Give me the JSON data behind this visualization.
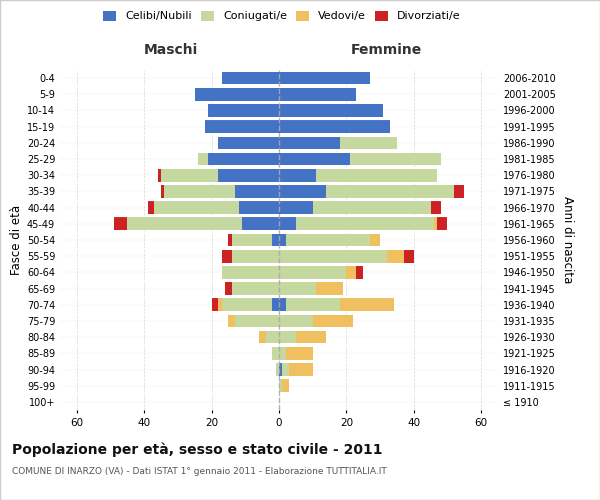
{
  "age_groups": [
    "100+",
    "95-99",
    "90-94",
    "85-89",
    "80-84",
    "75-79",
    "70-74",
    "65-69",
    "60-64",
    "55-59",
    "50-54",
    "45-49",
    "40-44",
    "35-39",
    "30-34",
    "25-29",
    "20-24",
    "15-19",
    "10-14",
    "5-9",
    "0-4"
  ],
  "birth_years": [
    "≤ 1910",
    "1911-1915",
    "1916-1920",
    "1921-1925",
    "1926-1930",
    "1931-1935",
    "1936-1940",
    "1941-1945",
    "1946-1950",
    "1951-1955",
    "1956-1960",
    "1961-1965",
    "1966-1970",
    "1971-1975",
    "1976-1980",
    "1981-1985",
    "1986-1990",
    "1991-1995",
    "1996-2000",
    "2001-2005",
    "2006-2010"
  ],
  "males": {
    "celibi": [
      0,
      0,
      0,
      0,
      0,
      0,
      2,
      0,
      0,
      0,
      2,
      11,
      12,
      13,
      18,
      21,
      18,
      22,
      21,
      25,
      17
    ],
    "coniugati": [
      0,
      0,
      1,
      2,
      4,
      13,
      15,
      14,
      17,
      14,
      12,
      34,
      25,
      21,
      17,
      3,
      0,
      0,
      0,
      0,
      0
    ],
    "vedovi": [
      0,
      0,
      0,
      0,
      2,
      2,
      1,
      0,
      0,
      0,
      0,
      0,
      0,
      0,
      0,
      0,
      0,
      0,
      0,
      0,
      0
    ],
    "divorziati": [
      0,
      0,
      0,
      0,
      0,
      0,
      2,
      2,
      0,
      3,
      1,
      4,
      2,
      1,
      1,
      0,
      0,
      0,
      0,
      0,
      0
    ]
  },
  "females": {
    "nubili": [
      0,
      0,
      1,
      0,
      0,
      0,
      2,
      0,
      0,
      0,
      2,
      5,
      10,
      14,
      11,
      21,
      18,
      33,
      31,
      23,
      27
    ],
    "coniugate": [
      0,
      1,
      2,
      2,
      5,
      10,
      16,
      11,
      20,
      32,
      25,
      41,
      35,
      38,
      36,
      27,
      17,
      0,
      0,
      0,
      0
    ],
    "vedove": [
      0,
      2,
      7,
      8,
      9,
      12,
      16,
      8,
      3,
      5,
      3,
      1,
      0,
      0,
      0,
      0,
      0,
      0,
      0,
      0,
      0
    ],
    "divorziate": [
      0,
      0,
      0,
      0,
      0,
      0,
      0,
      0,
      2,
      3,
      0,
      3,
      3,
      3,
      0,
      0,
      0,
      0,
      0,
      0,
      0
    ]
  },
  "color_celibi": "#4472c4",
  "color_coniugati": "#c5d8a0",
  "color_vedovi": "#f0c060",
  "color_divorziati": "#cc2222",
  "xlim": 65,
  "title": "Popolazione per età, sesso e stato civile - 2011",
  "subtitle": "COMUNE DI INARZO (VA) - Dati ISTAT 1° gennaio 2011 - Elaborazione TUTTITALIA.IT",
  "ylabel": "Fasce di età",
  "ylabel_right": "Anni di nascita",
  "xlabel_maschi": "Maschi",
  "xlabel_femmine": "Femmine",
  "plot_bg_color": "#ffffff",
  "fig_bg_color": "#ffffff"
}
